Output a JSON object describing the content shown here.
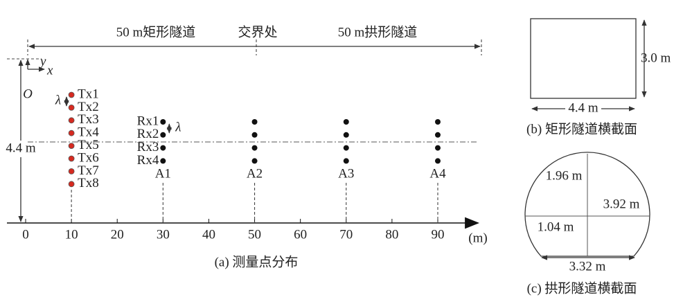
{
  "panel_a": {
    "top_left_label": "50 m矩形隧道",
    "junction_label": "交界处",
    "top_right_label": "50 m拱形隧道",
    "height_label": "4.4 m",
    "origin_label": "O",
    "x_axis_label": "x",
    "y_axis_label": "y",
    "lambda": "λ",
    "tx_position": 10,
    "transmitters": [
      "Tx1",
      "Tx2",
      "Tx3",
      "Tx4",
      "Tx5",
      "Tx6",
      "Tx7",
      "Tx8"
    ],
    "receivers": [
      "Rx1",
      "Rx2",
      "Rx3",
      "Rx4"
    ],
    "positions": [
      {
        "label": "A1",
        "x": 30
      },
      {
        "label": "A2",
        "x": 50
      },
      {
        "label": "A3",
        "x": 70
      },
      {
        "label": "A4",
        "x": 90
      }
    ],
    "xticks": [
      0,
      10,
      20,
      30,
      40,
      50,
      60,
      70,
      80,
      90
    ],
    "unit": "(m)",
    "caption": "(a) 测量点分布"
  },
  "panel_b": {
    "height_label": "3.0 m",
    "width_label": "4.4 m",
    "caption": "(b) 矩形隧道横截面"
  },
  "panel_c": {
    "top_height_label": "1.96 m",
    "width_label": "3.92 m",
    "bottom_height_label": "1.04 m",
    "base_label": "3.32 m",
    "caption": "(c) 拱形隧道横截面"
  }
}
